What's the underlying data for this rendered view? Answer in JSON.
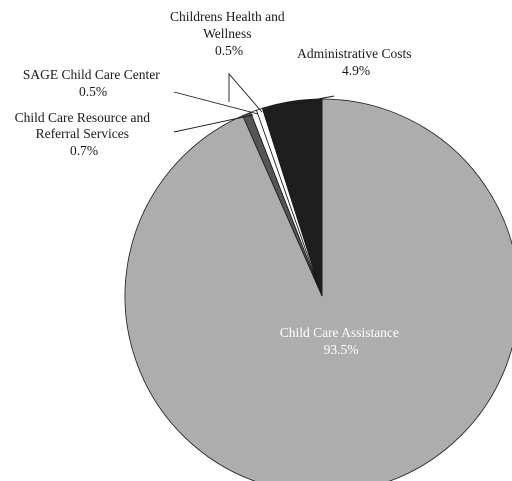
{
  "chart_data": {
    "type": "pie",
    "title": "",
    "slices": [
      {
        "name": "Child Care Assistance",
        "pct_label": "93.5%",
        "value": 93.5,
        "color": "#adadad"
      },
      {
        "name": "Child Care Resource and Referral Services",
        "name_lines": [
          "Child Care Resource and",
          "Referral Services"
        ],
        "pct_label": "0.7%",
        "value": 0.7,
        "color": "#555555"
      },
      {
        "name": "SAGE Child Care Center",
        "name_lines": [
          "SAGE Child Care Center"
        ],
        "pct_label": "0.5%",
        "value": 0.5,
        "color": "#ffffff"
      },
      {
        "name": "Childrens Health and Wellness",
        "name_lines": [
          "Childrens Health and",
          "Wellness"
        ],
        "pct_label": "0.5%",
        "value": 0.5,
        "color": "#ffffff"
      },
      {
        "name": "Administrative Costs",
        "name_lines": [
          "Administrative Costs"
        ],
        "pct_label": "4.9%",
        "value": 4.9,
        "color": "#1e1e1e"
      }
    ],
    "start": "12 o'clock",
    "direction": "counterclockwise",
    "slice_border_color": "#1a1a1a"
  }
}
